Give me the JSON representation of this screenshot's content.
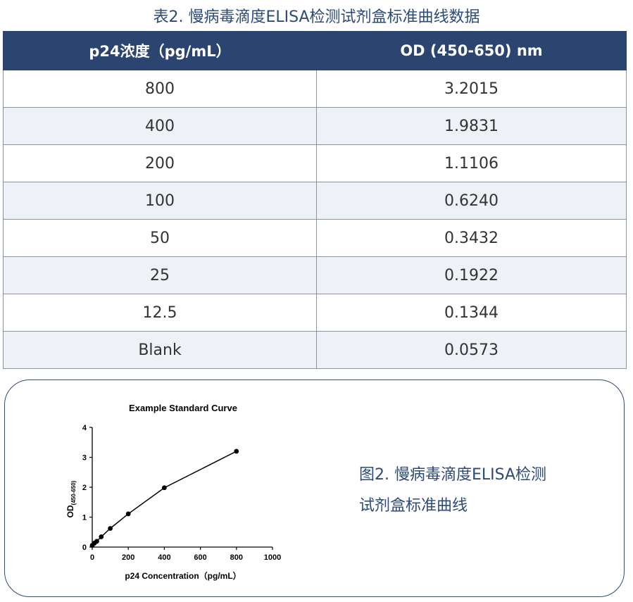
{
  "table": {
    "caption": "表2. 慢病毒滴度ELISA检测试剂盒标准曲线数据",
    "headers": [
      "p24浓度（pg/mL）",
      "OD (450-650) nm"
    ],
    "rows": [
      {
        "concentration": "800",
        "od": "3.2015"
      },
      {
        "concentration": "400",
        "od": "1.9831"
      },
      {
        "concentration": "200",
        "od": "1.1106"
      },
      {
        "concentration": "100",
        "od": "0.6240"
      },
      {
        "concentration": "50",
        "od": "0.3432"
      },
      {
        "concentration": "25",
        "od": "0.1922"
      },
      {
        "concentration": "12.5",
        "od": "0.1344"
      },
      {
        "concentration": "Blank",
        "od": "0.0573"
      }
    ]
  },
  "figure": {
    "caption_line1": "图2. 慢病毒滴度ELISA检测",
    "caption_line2": "试剂盒标准曲线"
  },
  "chart_data": {
    "type": "line",
    "title": "Example Standard Curve",
    "xlabel": "p24 Concentration（pg/mL）",
    "ylabel": "OD",
    "ylabel_sub": "(450-650)",
    "xlim": [
      0,
      1000
    ],
    "ylim": [
      0,
      4
    ],
    "xticks": [
      0,
      200,
      400,
      600,
      800,
      1000
    ],
    "yticks": [
      0,
      1,
      2,
      3,
      4
    ],
    "grid": false,
    "series": [
      {
        "x": [
          0,
          12.5,
          25,
          50,
          100,
          200,
          400,
          800
        ],
        "y": [
          0.0573,
          0.1344,
          0.1922,
          0.3432,
          0.624,
          1.1106,
          1.9831,
          3.2015
        ],
        "color": "#000000",
        "marker": "circle"
      }
    ]
  },
  "colors": {
    "header_bg": "#2b4470",
    "accent": "#2d4a78"
  }
}
